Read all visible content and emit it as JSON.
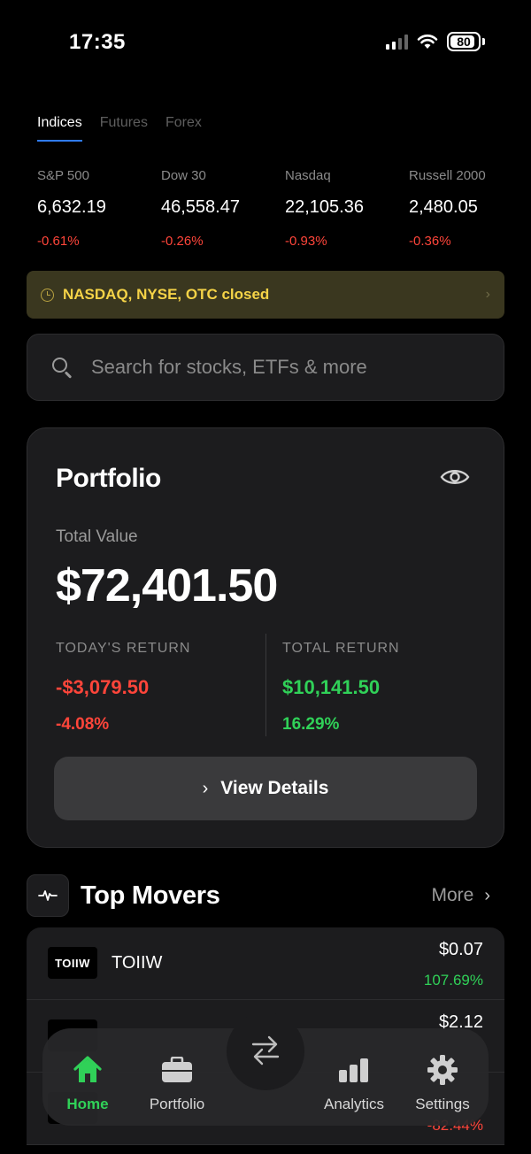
{
  "status_bar": {
    "time": "17:35",
    "battery": "80"
  },
  "tabs": [
    {
      "label": "Indices",
      "active": true
    },
    {
      "label": "Futures",
      "active": false
    },
    {
      "label": "Forex",
      "active": false
    }
  ],
  "indices": [
    {
      "name": "S&P 500",
      "value": "6,632.19",
      "change": "-0.61%"
    },
    {
      "name": "Dow 30",
      "value": "46,558.47",
      "change": "-0.26%"
    },
    {
      "name": "Nasdaq",
      "value": "22,105.36",
      "change": "-0.93%"
    },
    {
      "name": "Russell 2000",
      "value": "2,480.05",
      "change": "-0.36%"
    }
  ],
  "market_banner": {
    "text": "NASDAQ, NYSE, OTC closed"
  },
  "search": {
    "placeholder": "Search for stocks, ETFs & more"
  },
  "portfolio": {
    "title": "Portfolio",
    "total_label": "Total Value",
    "total_value": "$72,401.50",
    "today_label": "TODAY'S RETURN",
    "today_amount": "-$3,079.50",
    "today_pct": "-4.08%",
    "total_return_label": "TOTAL RETURN",
    "total_return_amount": "$10,141.50",
    "total_return_pct": "16.29%",
    "view_details_label": "View Details"
  },
  "top_movers": {
    "title": "Top Movers",
    "more_label": "More",
    "items": [
      {
        "logo": "TOIIW",
        "name": "TOIIW",
        "price": "$0.07",
        "change": "107.69%"
      },
      {
        "logo": "",
        "name": "",
        "price": "$2.12",
        "change": ""
      },
      {
        "logo": "",
        "name": "",
        "price": "",
        "change": "-82.44%"
      }
    ]
  },
  "bottom_nav": {
    "items": [
      {
        "label": "Home",
        "icon": "home-icon",
        "active": true
      },
      {
        "label": "Portfolio",
        "icon": "briefcase-icon",
        "active": false
      },
      {
        "label": "Analytics",
        "icon": "bar-chart-icon",
        "active": false
      },
      {
        "label": "Settings",
        "icon": "gear-icon",
        "active": false
      }
    ],
    "center_icon": "swap-arrows-icon"
  },
  "colors": {
    "accent": "#30d158",
    "negative": "#ff453a",
    "tab_indicator": "#2f7bf6",
    "banner_text": "#f5d347"
  }
}
